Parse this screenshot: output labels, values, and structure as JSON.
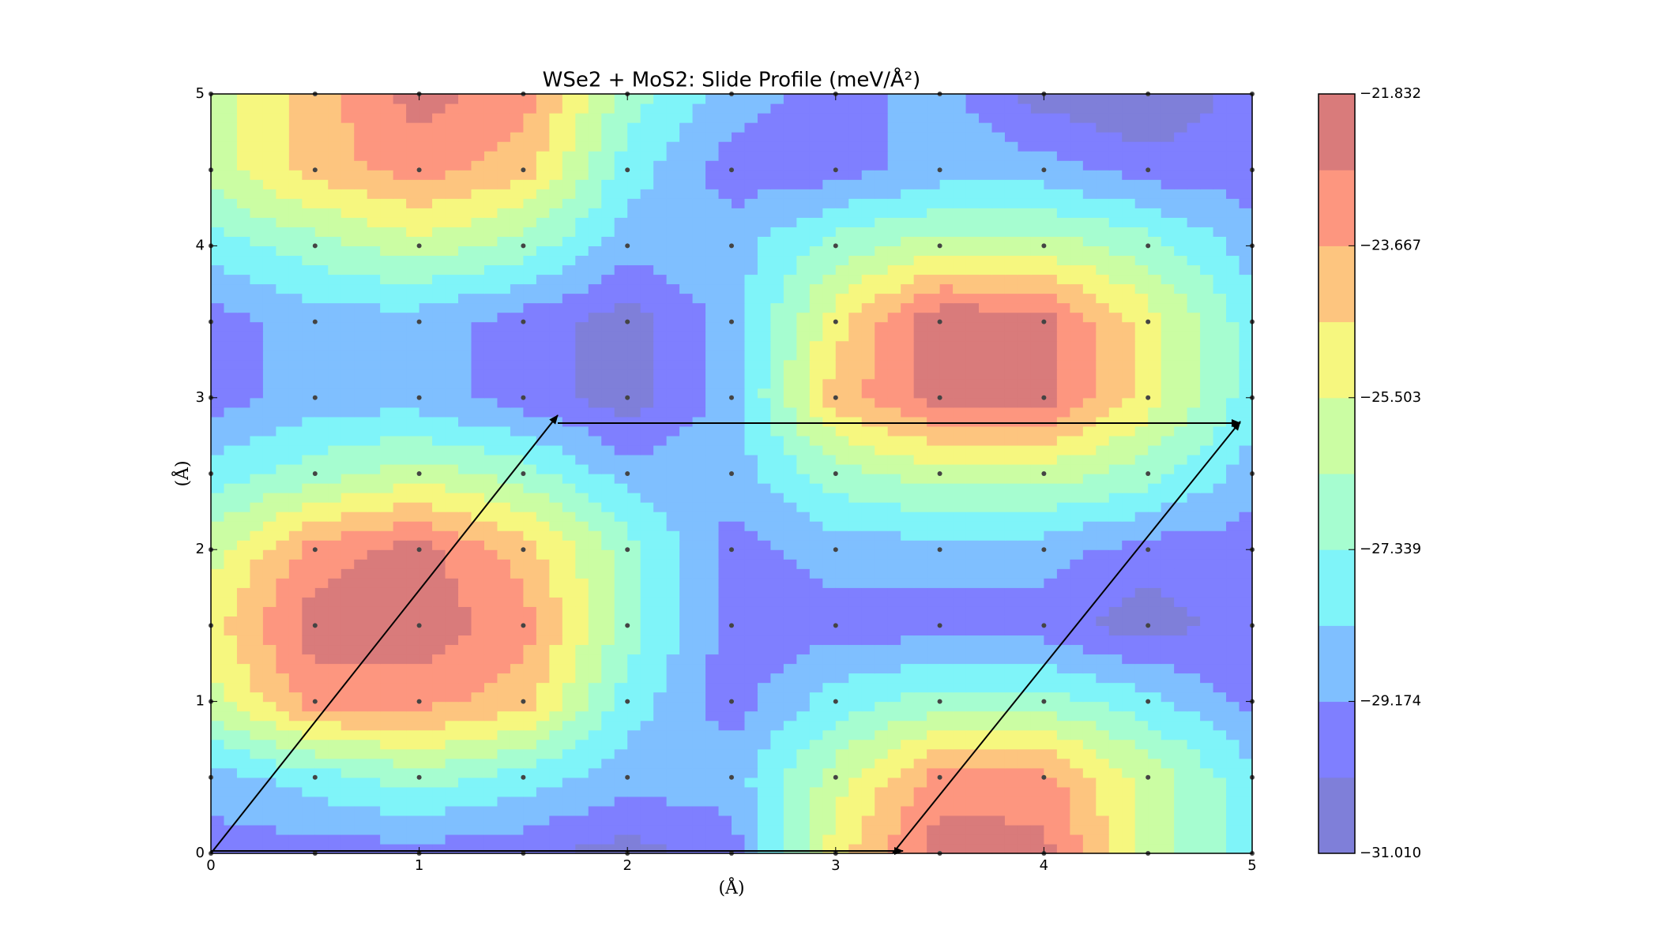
{
  "chart_data": {
    "type": "contour",
    "title": "WSe2 + MoS2: Slide Profile (meV/Å²)",
    "x_label": "(Å)",
    "y_label": "(Å)",
    "x": [
      0,
      0.5,
      1,
      1.5,
      2,
      2.5,
      3,
      3.5,
      4,
      4.5,
      5
    ],
    "y": [
      0,
      0.5,
      1,
      1.5,
      2,
      2.5,
      3,
      3.5,
      4,
      4.5,
      5
    ],
    "z": [
      [
        -29.63,
        -29.63,
        -29.63,
        -29.8,
        -30.55,
        -29.63,
        -25.04,
        -22.29,
        -22.4,
        -25.96,
        -27.8
      ],
      [
        -28.72,
        -27.8,
        -26.88,
        -27.8,
        -28.72,
        -28.72,
        -25.96,
        -23.21,
        -23.3,
        -25.96,
        -27.8
      ],
      [
        -25.96,
        -23.21,
        -23.3,
        -24.13,
        -27.8,
        -29.63,
        -27.8,
        -26.88,
        -26.88,
        -27.8,
        -29.63
      ],
      [
        -25.04,
        -22.29,
        -22.2,
        -23.21,
        -26.88,
        -29.63,
        -29.63,
        -29.63,
        -29.63,
        -30.6,
        -29.63
      ],
      [
        -25.96,
        -23.21,
        -22.29,
        -24.13,
        -26.88,
        -29.63,
        -28.72,
        -28.72,
        -28.72,
        -29.63,
        -29.63
      ],
      [
        -27.8,
        -26.88,
        -25.96,
        -26.88,
        -28.72,
        -28.72,
        -26.88,
        -25.96,
        -25.96,
        -26.88,
        -28.72
      ],
      [
        -29.63,
        -28.72,
        -28.72,
        -29.63,
        -30.55,
        -28.72,
        -24.13,
        -22.29,
        -22.29,
        -25.04,
        -27.8
      ],
      [
        -29.63,
        -28.72,
        -28.72,
        -29.63,
        -30.55,
        -28.72,
        -25.04,
        -21.832,
        -22.29,
        -25.04,
        -27.8
      ],
      [
        -27.8,
        -26.88,
        -25.96,
        -26.88,
        -28.72,
        -28.72,
        -26.88,
        -25.96,
        -25.96,
        -26.88,
        -28.72
      ],
      [
        -25.96,
        -24.13,
        -23.21,
        -24.13,
        -27.8,
        -29.63,
        -29.63,
        -28.72,
        -28.72,
        -29.63,
        -29.63
      ],
      [
        -25.96,
        -24.13,
        -22.29,
        -23.21,
        -26.88,
        -28.72,
        -29.63,
        -28.72,
        -30.55,
        -31.01,
        -29.63
      ]
    ],
    "xlim": [
      0,
      5
    ],
    "ylim": [
      0,
      5
    ],
    "xticks": [
      0,
      1,
      2,
      3,
      4,
      5
    ],
    "yticks": [
      0,
      1,
      2,
      3,
      4,
      5
    ],
    "zlim": [
      -31.01,
      -21.832
    ],
    "zticks": [
      {
        "value": -31.01,
        "label": "−31.010"
      },
      {
        "value": -29.174,
        "label": "−29.174"
      },
      {
        "value": -27.339,
        "label": "−27.339"
      },
      {
        "value": -25.503,
        "label": "−25.503"
      },
      {
        "value": -23.667,
        "label": "−23.667"
      },
      {
        "value": -21.832,
        "label": "−21.832"
      }
    ],
    "colors": [
      "#7f7fd9",
      "#7f7fff",
      "#7fbfff",
      "#7ff4f9",
      "#a6fdd0",
      "#cbfda3",
      "#f6f77f",
      "#fdc57f",
      "#fd967f",
      "#d97b7b"
    ]
  }
}
